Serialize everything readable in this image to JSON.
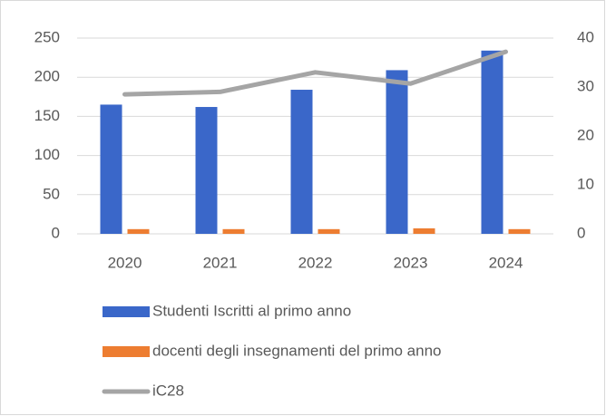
{
  "chart_data": {
    "type": "bar",
    "categories": [
      "2020",
      "2021",
      "2022",
      "2023",
      "2024"
    ],
    "series": [
      {
        "name": "Studenti Iscritti al primo anno",
        "type": "bar",
        "color": "#3a67c9",
        "values": [
          165,
          162,
          184,
          209,
          234
        ]
      },
      {
        "name": "docenti degli insegnamenti del primo anno",
        "type": "bar",
        "color": "#ed7d31",
        "values": [
          6,
          6,
          6,
          7,
          6
        ]
      },
      {
        "name": "iC28",
        "type": "line",
        "axis": "y2",
        "color": "#a5a5a5",
        "values": [
          28.5,
          29,
          33,
          30.7,
          37.2
        ]
      }
    ],
    "ylim": [
      0,
      250
    ],
    "yticks": [
      0,
      50,
      100,
      150,
      200,
      250
    ],
    "y2lim": [
      0,
      40
    ],
    "y2ticks": [
      0,
      10,
      20,
      30,
      40
    ],
    "grid": true,
    "legend": "bottom"
  }
}
